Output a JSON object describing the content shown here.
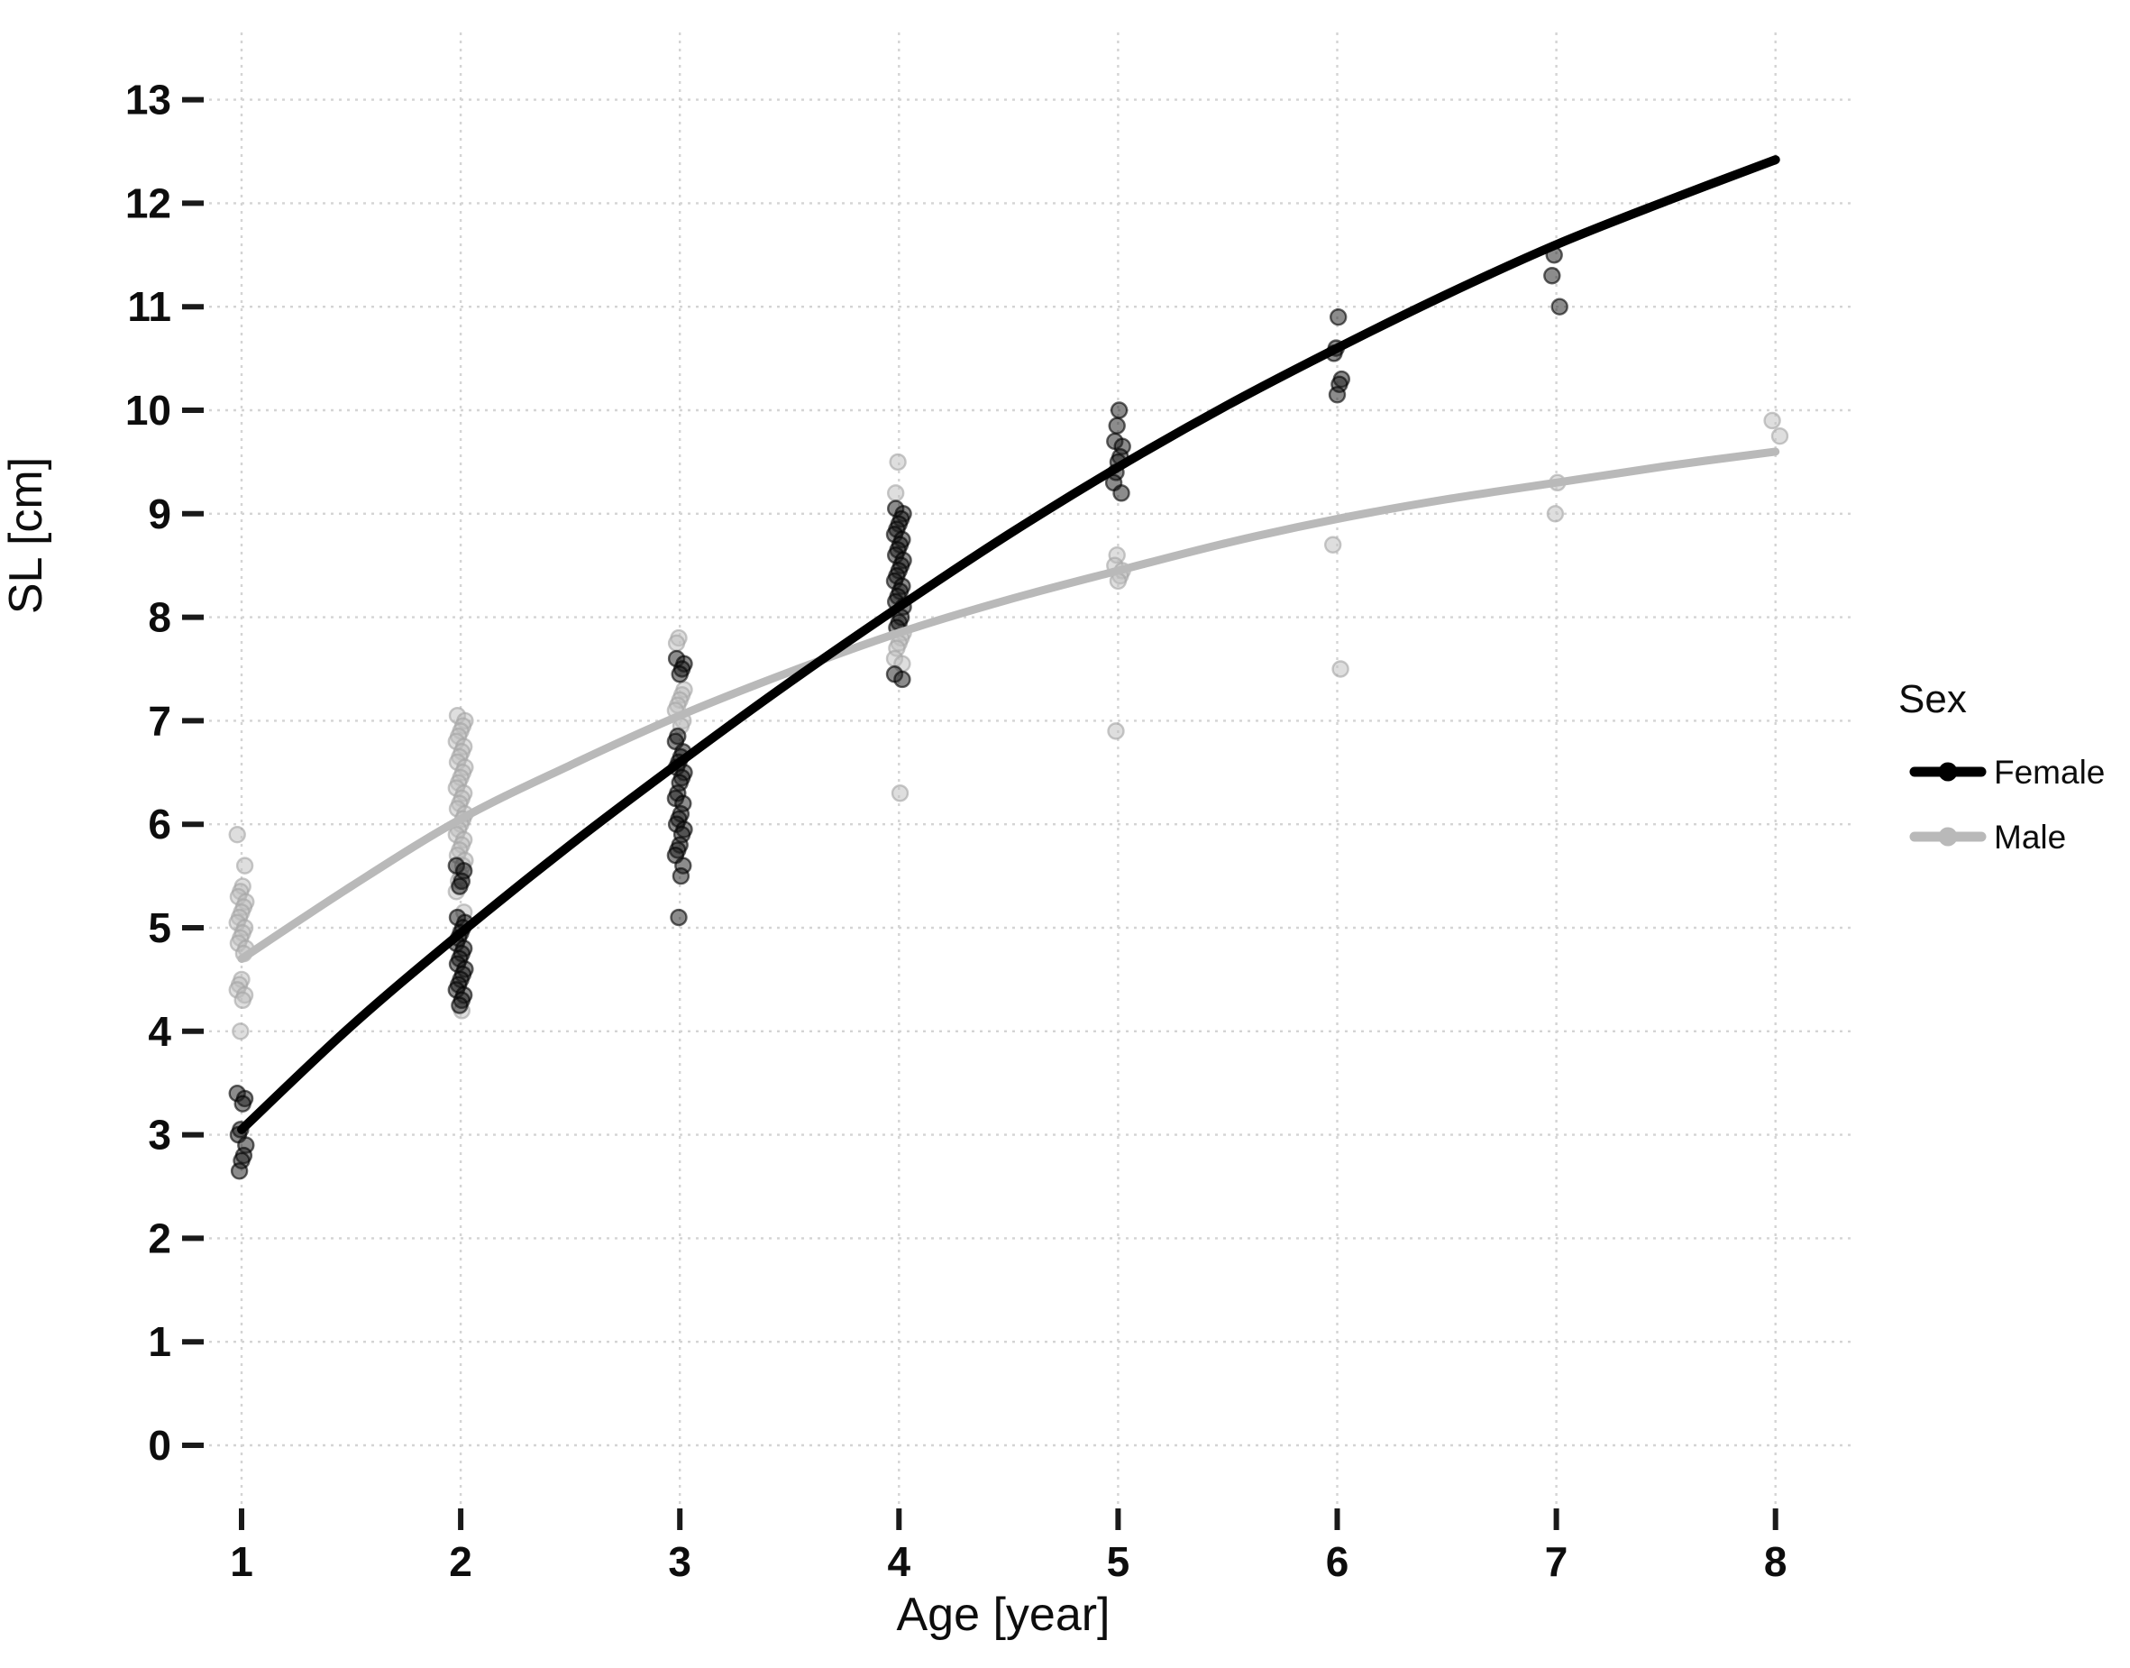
{
  "chart_data": {
    "type": "scatter",
    "xlabel": "Age [year]",
    "ylabel": "SL [cm]",
    "x_ticks": [
      1,
      2,
      3,
      4,
      5,
      6,
      7,
      8
    ],
    "y_ticks": [
      0,
      1,
      2,
      3,
      4,
      5,
      6,
      7,
      8,
      9,
      10,
      11,
      12,
      13
    ],
    "xlim": [
      0.85,
      8.37
    ],
    "ylim": [
      -0.6,
      13.65
    ],
    "grid": {
      "visible": true,
      "style": "dotted",
      "color": "#d4d4d4"
    },
    "background": "#ffffff",
    "tick_color": "#1a1a1a",
    "legend": {
      "title": "Sex",
      "position": "right",
      "entries": [
        {
          "label": "Female",
          "color": "#000000"
        },
        {
          "label": "Male",
          "color": "#b9b9b9"
        }
      ]
    },
    "series": [
      {
        "name": "Female",
        "line_color": "#000000",
        "point_color": "#1a1a1a",
        "point_stroke": "#000000",
        "points": [
          [
            1,
            3.4
          ],
          [
            1,
            3.35
          ],
          [
            1,
            3.3
          ],
          [
            1,
            3.05
          ],
          [
            1,
            3.0
          ],
          [
            1,
            2.9
          ],
          [
            1,
            2.8
          ],
          [
            1,
            2.75
          ],
          [
            1,
            2.65
          ],
          [
            2,
            5.6
          ],
          [
            2,
            5.55
          ],
          [
            2,
            5.45
          ],
          [
            2,
            5.4
          ],
          [
            2,
            5.1
          ],
          [
            2,
            5.05
          ],
          [
            2,
            5.0
          ],
          [
            2,
            4.95
          ],
          [
            2,
            4.9
          ],
          [
            2,
            4.85
          ],
          [
            2,
            4.8
          ],
          [
            2,
            4.75
          ],
          [
            2,
            4.7
          ],
          [
            2,
            4.65
          ],
          [
            2,
            4.6
          ],
          [
            2,
            4.55
          ],
          [
            2,
            4.5
          ],
          [
            2,
            4.45
          ],
          [
            2,
            4.4
          ],
          [
            2,
            4.35
          ],
          [
            2,
            4.3
          ],
          [
            2,
            4.25
          ],
          [
            3,
            7.6
          ],
          [
            3,
            7.55
          ],
          [
            3,
            7.5
          ],
          [
            3,
            7.45
          ],
          [
            3,
            6.85
          ],
          [
            3,
            6.8
          ],
          [
            3,
            6.7
          ],
          [
            3,
            6.65
          ],
          [
            3,
            6.6
          ],
          [
            3,
            6.55
          ],
          [
            3,
            6.5
          ],
          [
            3,
            6.45
          ],
          [
            3,
            6.4
          ],
          [
            3,
            6.3
          ],
          [
            3,
            6.25
          ],
          [
            3,
            6.2
          ],
          [
            3,
            6.1
          ],
          [
            3,
            6.05
          ],
          [
            3,
            6.0
          ],
          [
            3,
            5.95
          ],
          [
            3,
            5.9
          ],
          [
            3,
            5.8
          ],
          [
            3,
            5.75
          ],
          [
            3,
            5.7
          ],
          [
            3,
            5.6
          ],
          [
            3,
            5.5
          ],
          [
            3,
            5.1
          ],
          [
            4,
            9.05
          ],
          [
            4,
            9.0
          ],
          [
            4,
            8.95
          ],
          [
            4,
            8.9
          ],
          [
            4,
            8.85
          ],
          [
            4,
            8.8
          ],
          [
            4,
            8.75
          ],
          [
            4,
            8.7
          ],
          [
            4,
            8.65
          ],
          [
            4,
            8.6
          ],
          [
            4,
            8.55
          ],
          [
            4,
            8.5
          ],
          [
            4,
            8.45
          ],
          [
            4,
            8.4
          ],
          [
            4,
            8.35
          ],
          [
            4,
            8.3
          ],
          [
            4,
            8.25
          ],
          [
            4,
            8.2
          ],
          [
            4,
            8.15
          ],
          [
            4,
            8.1
          ],
          [
            4,
            8.0
          ],
          [
            4,
            7.95
          ],
          [
            4,
            7.9
          ],
          [
            4,
            7.45
          ],
          [
            4,
            7.4
          ],
          [
            5,
            10.0
          ],
          [
            5,
            9.85
          ],
          [
            5,
            9.7
          ],
          [
            5,
            9.65
          ],
          [
            5,
            9.55
          ],
          [
            5,
            9.5
          ],
          [
            5,
            9.4
          ],
          [
            5,
            9.3
          ],
          [
            5,
            9.2
          ],
          [
            6,
            10.9
          ],
          [
            6,
            10.6
          ],
          [
            6,
            10.55
          ],
          [
            6,
            10.3
          ],
          [
            6,
            10.25
          ],
          [
            6,
            10.15
          ],
          [
            7,
            11.5
          ],
          [
            7,
            11.3
          ],
          [
            7,
            11.0
          ]
        ],
        "curve": [
          [
            1,
            3.05
          ],
          [
            1.5,
            4.05
          ],
          [
            2,
            4.95
          ],
          [
            2.5,
            5.8
          ],
          [
            3,
            6.6
          ],
          [
            3.5,
            7.37
          ],
          [
            4,
            8.1
          ],
          [
            4.5,
            8.8
          ],
          [
            5,
            9.45
          ],
          [
            5.5,
            10.05
          ],
          [
            6,
            10.6
          ],
          [
            6.5,
            11.12
          ],
          [
            7,
            11.6
          ],
          [
            7.5,
            12.02
          ],
          [
            8,
            12.42
          ]
        ]
      },
      {
        "name": "Male",
        "line_color": "#b9b9b9",
        "point_color": "#bdbdbd",
        "point_stroke": "#a3a3a3",
        "points": [
          [
            1,
            5.9
          ],
          [
            1,
            5.6
          ],
          [
            1,
            5.4
          ],
          [
            1,
            5.35
          ],
          [
            1,
            5.3
          ],
          [
            1,
            5.25
          ],
          [
            1,
            5.2
          ],
          [
            1,
            5.15
          ],
          [
            1,
            5.1
          ],
          [
            1,
            5.05
          ],
          [
            1,
            5.0
          ],
          [
            1,
            4.95
          ],
          [
            1,
            4.9
          ],
          [
            1,
            4.85
          ],
          [
            1,
            4.8
          ],
          [
            1,
            4.75
          ],
          [
            1,
            4.5
          ],
          [
            1,
            4.45
          ],
          [
            1,
            4.4
          ],
          [
            1,
            4.35
          ],
          [
            1,
            4.3
          ],
          [
            1,
            4.0
          ],
          [
            2,
            7.05
          ],
          [
            2,
            7.0
          ],
          [
            2,
            6.95
          ],
          [
            2,
            6.9
          ],
          [
            2,
            6.85
          ],
          [
            2,
            6.8
          ],
          [
            2,
            6.75
          ],
          [
            2,
            6.7
          ],
          [
            2,
            6.65
          ],
          [
            2,
            6.6
          ],
          [
            2,
            6.55
          ],
          [
            2,
            6.5
          ],
          [
            2,
            6.45
          ],
          [
            2,
            6.4
          ],
          [
            2,
            6.35
          ],
          [
            2,
            6.3
          ],
          [
            2,
            6.25
          ],
          [
            2,
            6.2
          ],
          [
            2,
            6.15
          ],
          [
            2,
            6.1
          ],
          [
            2,
            6.05
          ],
          [
            2,
            6.0
          ],
          [
            2,
            5.95
          ],
          [
            2,
            5.9
          ],
          [
            2,
            5.85
          ],
          [
            2,
            5.8
          ],
          [
            2,
            5.75
          ],
          [
            2,
            5.7
          ],
          [
            2,
            5.65
          ],
          [
            2,
            5.6
          ],
          [
            2,
            5.5
          ],
          [
            2,
            5.45
          ],
          [
            2,
            5.35
          ],
          [
            2,
            5.15
          ],
          [
            2,
            4.2
          ],
          [
            3,
            7.8
          ],
          [
            3,
            7.75
          ],
          [
            3,
            7.3
          ],
          [
            3,
            7.25
          ],
          [
            3,
            7.2
          ],
          [
            3,
            7.15
          ],
          [
            3,
            7.1
          ],
          [
            3,
            7.0
          ],
          [
            3,
            6.95
          ],
          [
            4,
            9.5
          ],
          [
            4,
            9.2
          ],
          [
            4,
            7.85
          ],
          [
            4,
            7.8
          ],
          [
            4,
            7.75
          ],
          [
            4,
            7.7
          ],
          [
            4,
            7.6
          ],
          [
            4,
            7.55
          ],
          [
            4,
            6.3
          ],
          [
            5,
            8.6
          ],
          [
            5,
            8.5
          ],
          [
            5,
            8.45
          ],
          [
            5,
            8.4
          ],
          [
            5,
            8.35
          ],
          [
            5,
            6.9
          ],
          [
            6,
            8.7
          ],
          [
            6,
            7.5
          ],
          [
            7,
            9.3
          ],
          [
            7,
            9.0
          ],
          [
            8,
            9.9
          ],
          [
            8,
            9.75
          ]
        ],
        "curve": [
          [
            1,
            4.7
          ],
          [
            1.5,
            5.4
          ],
          [
            2,
            6.05
          ],
          [
            2.5,
            6.57
          ],
          [
            3,
            7.05
          ],
          [
            3.5,
            7.47
          ],
          [
            4,
            7.85
          ],
          [
            4.5,
            8.17
          ],
          [
            5,
            8.45
          ],
          [
            5.5,
            8.72
          ],
          [
            6,
            8.95
          ],
          [
            6.5,
            9.14
          ],
          [
            7,
            9.3
          ],
          [
            7.5,
            9.46
          ],
          [
            8,
            9.6
          ]
        ]
      }
    ]
  }
}
